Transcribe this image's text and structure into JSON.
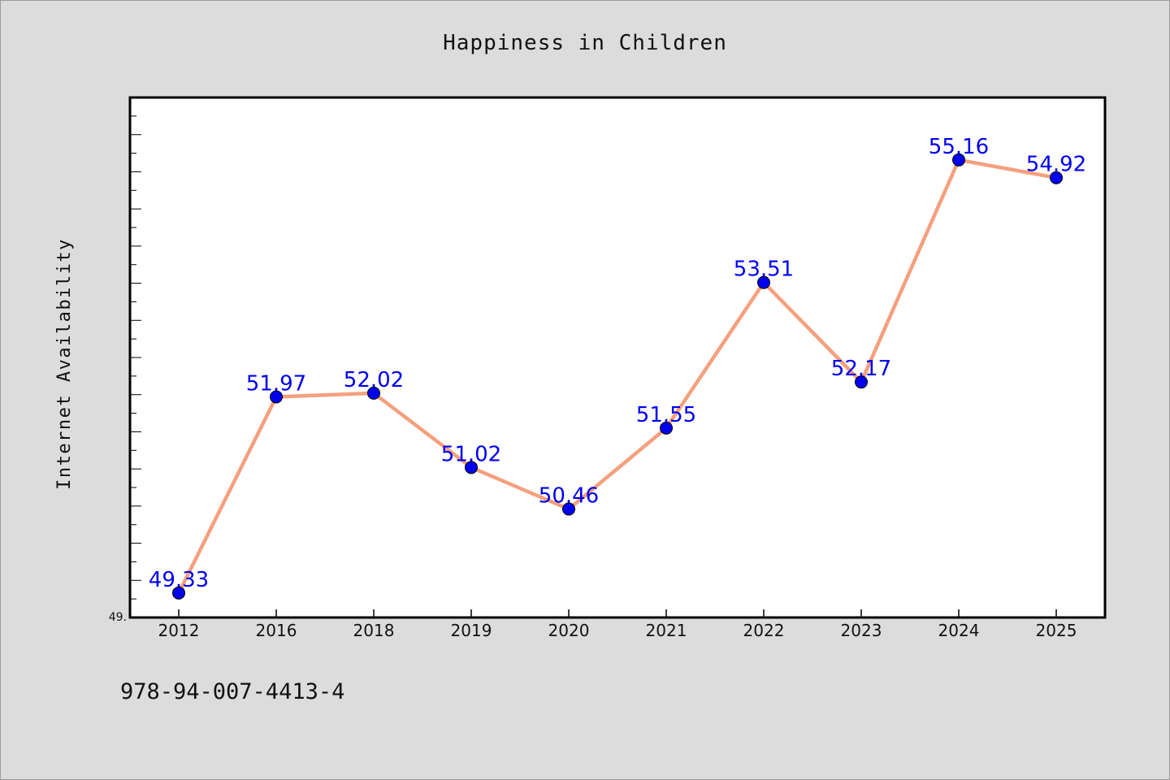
{
  "chart_data": {
    "type": "line",
    "title": "Happiness in Children",
    "xlabel": "",
    "ylabel": "Internet Availability",
    "categories": [
      "2012",
      "2016",
      "2018",
      "2019",
      "2020",
      "2021",
      "2022",
      "2023",
      "2024",
      "2025"
    ],
    "series": [
      {
        "values": [
          49.33,
          51.97,
          52.02,
          51.02,
          50.46,
          51.55,
          53.51,
          52.17,
          55.16,
          54.92
        ],
        "labels": [
          "49.33",
          "51.97",
          "52.02",
          "51.02",
          "50.46",
          "51.55",
          "53.51",
          "52.17",
          "55.16",
          "54.92"
        ],
        "line_color": "#f4a07e",
        "marker_color": "#0000ee",
        "label_color": "#0000ee"
      }
    ],
    "ylim": [
      49.0,
      56.0
    ],
    "yticks_labeled": [
      "49."
    ],
    "grid": false,
    "legend": "none"
  },
  "footer": {
    "isbn": "978-94-007-4413-4"
  },
  "colors": {
    "background": "#dcdcdc",
    "plot_background": "#ffffff",
    "axis": "#000000"
  }
}
